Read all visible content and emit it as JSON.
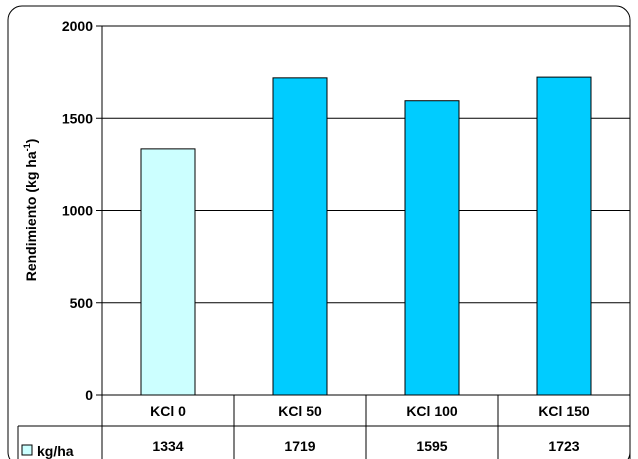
{
  "chart_data": {
    "type": "bar",
    "categories": [
      "KCl 0",
      "KCl 50",
      "KCl 100",
      "KCl 150"
    ],
    "values": [
      1334,
      1719,
      1595,
      1723
    ],
    "series": [
      {
        "name": "kg/ha",
        "values": [
          1334,
          1719,
          1595,
          1723
        ]
      }
    ],
    "ylabel": "Rendimiento (kg ha",
    "ylabel_superscript": "-1",
    "ylabel_close": ")",
    "ylim": [
      0,
      2000
    ],
    "yticks": [
      0,
      500,
      1000,
      1500,
      2000
    ],
    "grid": true,
    "data_table": true,
    "legend_key": "kg/ha",
    "colors": {
      "first_bar": "#ccffff",
      "other_bars": "#00ccff",
      "outline": "#000000"
    }
  }
}
